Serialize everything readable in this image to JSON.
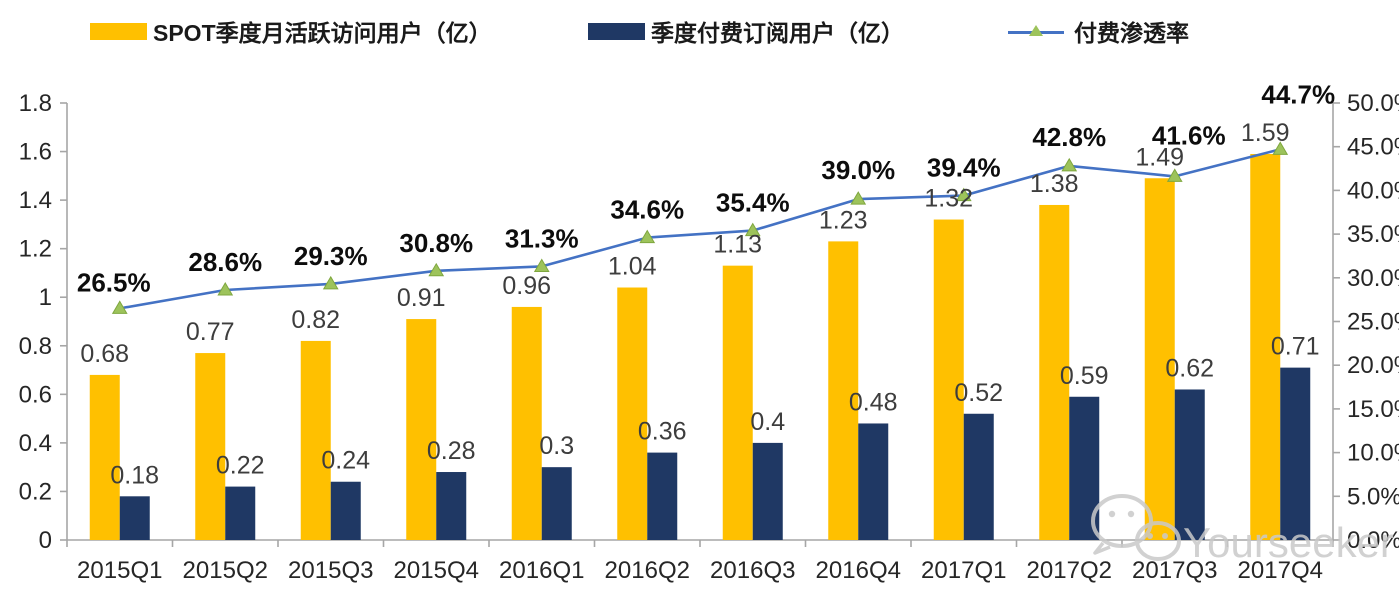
{
  "legend": {
    "mau_label": "SPOT季度月活跃访问用户（亿）",
    "subs_label": "季度付费订阅用户（亿）",
    "penetration_label": "付费渗透率"
  },
  "watermark": {
    "icon": "wechat-icon",
    "text": "Yourseeker"
  },
  "colors": {
    "mau_bar": "#FFC000",
    "subs_bar": "#1F3864",
    "line": "#4472C4",
    "marker_fill": "#9DC35B",
    "marker_stroke": "#7FA73F",
    "axis": "#A6A6A6",
    "tick_text": "#262626",
    "value_text": "#3d3d3d",
    "pct_text": "#0d0d0d",
    "watermark": "#c9c9c9"
  },
  "chart_data": {
    "type": "combo",
    "categories": [
      "2015Q1",
      "2015Q2",
      "2015Q3",
      "2015Q4",
      "2016Q1",
      "2016Q2",
      "2016Q3",
      "2016Q4",
      "2017Q1",
      "2017Q2",
      "2017Q3",
      "2017Q4"
    ],
    "series": [
      {
        "name": "SPOT季度月活跃访问用户（亿）",
        "type": "bar",
        "axis": "left",
        "values": [
          0.68,
          0.77,
          0.82,
          0.91,
          0.96,
          1.04,
          1.13,
          1.23,
          1.32,
          1.38,
          1.49,
          1.59
        ],
        "labels": [
          "0.68",
          "0.77",
          "0.82",
          "0.91",
          "0.96",
          "1.04",
          "1.13",
          "1.23",
          "1.32",
          "1.38",
          "1.49",
          "1.59"
        ]
      },
      {
        "name": "季度付费订阅用户（亿）",
        "type": "bar",
        "axis": "left",
        "values": [
          0.18,
          0.22,
          0.24,
          0.28,
          0.3,
          0.36,
          0.4,
          0.48,
          0.52,
          0.59,
          0.62,
          0.71
        ],
        "labels": [
          "0.18",
          "0.22",
          "0.24",
          "0.28",
          "0.3",
          "0.36",
          "0.4",
          "0.48",
          "0.52",
          "0.59",
          "0.62",
          "0.71"
        ]
      },
      {
        "name": "付费渗透率",
        "type": "line",
        "axis": "right",
        "values": [
          26.5,
          28.6,
          29.3,
          30.8,
          31.3,
          34.6,
          35.4,
          39.0,
          39.4,
          42.8,
          41.6,
          44.7
        ],
        "labels": [
          "26.5%",
          "28.6%",
          "29.3%",
          "30.8%",
          "31.3%",
          "34.6%",
          "35.4%",
          "39.0%",
          "39.4%",
          "42.8%",
          "41.6%",
          "44.7%"
        ]
      }
    ],
    "left_axis": {
      "min": 0,
      "max": 1.8,
      "ticks": [
        "1.8",
        "1.6",
        "1.4",
        "1.2",
        "1",
        "0.8",
        "0.6",
        "0.4",
        "0.2",
        "0"
      ]
    },
    "right_axis": {
      "min": 0,
      "max": 50,
      "ticks": [
        "50.0%",
        "45.0%",
        "40.0%",
        "35.0%",
        "30.0%",
        "25.0%",
        "20.0%",
        "15.0%",
        "10.0%",
        "5.0%",
        "0.0%"
      ]
    },
    "grid": false,
    "legend_position": "top"
  }
}
